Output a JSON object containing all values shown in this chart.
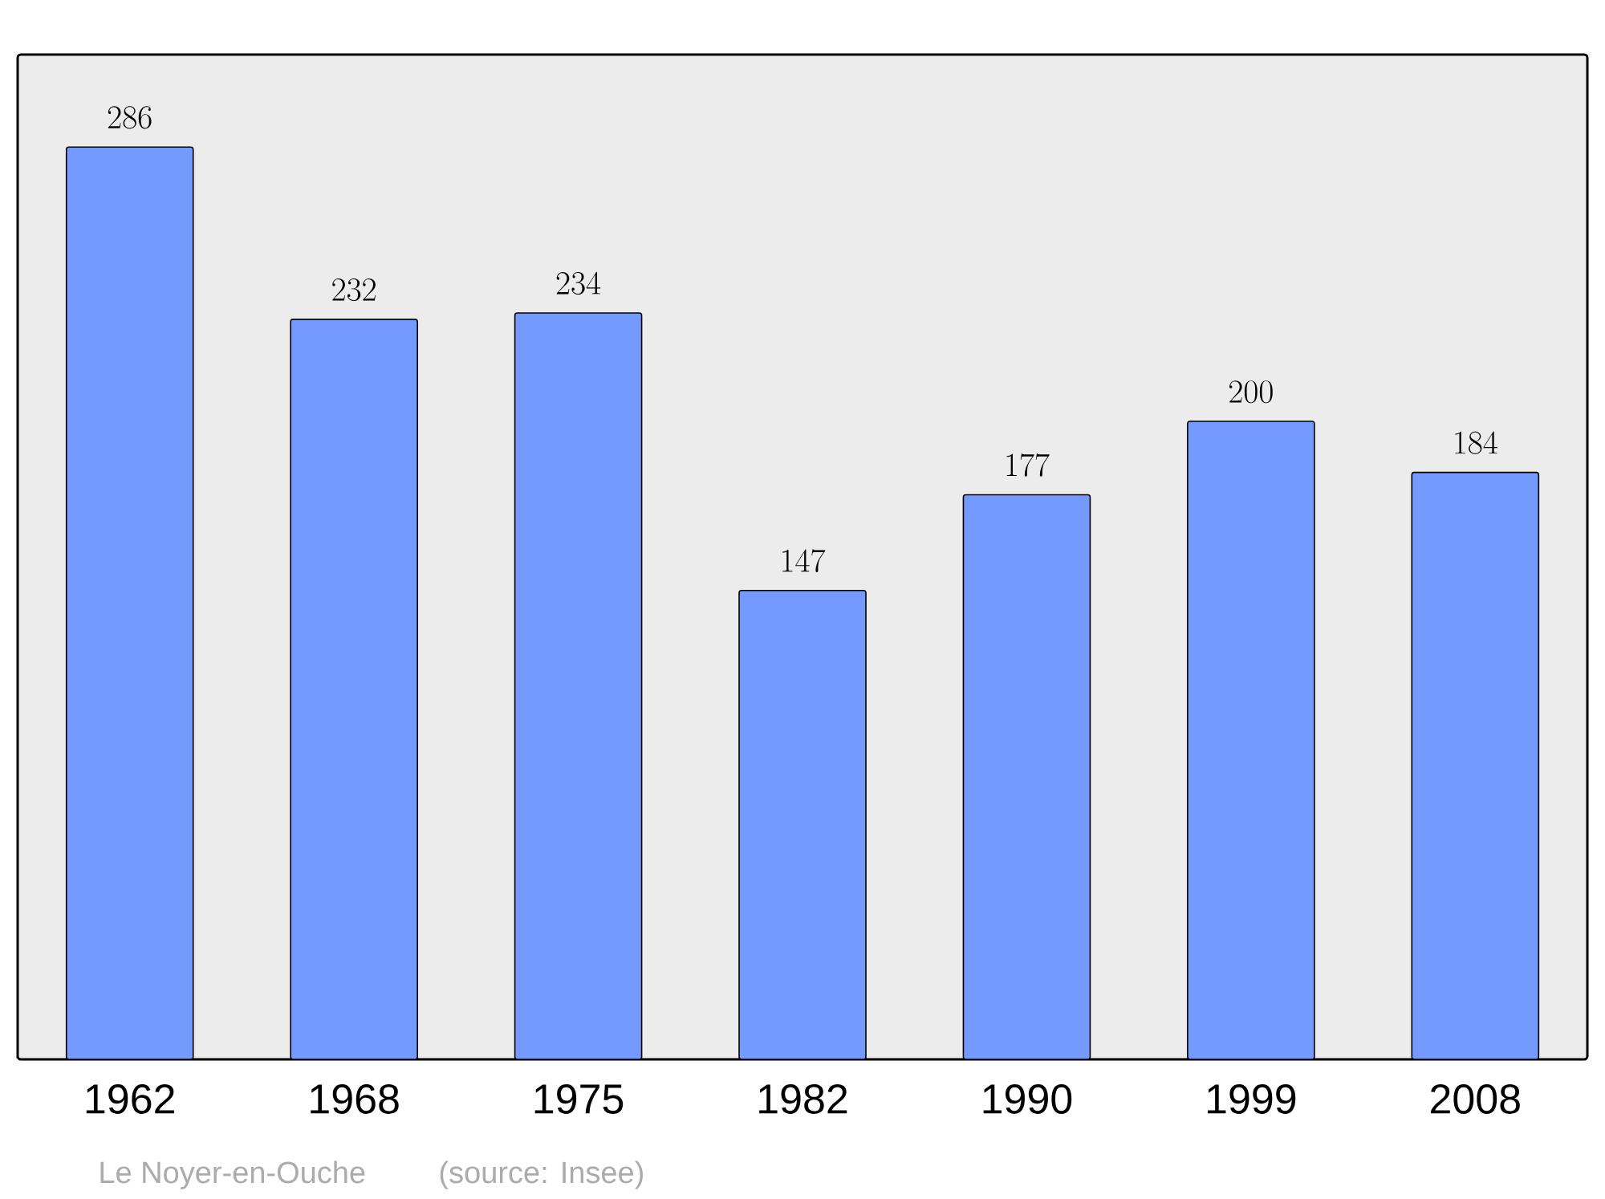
{
  "chart_data": {
    "type": "bar",
    "categories": [
      "1962",
      "1968",
      "1975",
      "1982",
      "1990",
      "1999",
      "2008"
    ],
    "values": [
      286,
      232,
      234,
      147,
      177,
      200,
      184
    ],
    "color": "#7499ff",
    "ylim": [
      0,
      315
    ],
    "data_labels": true,
    "annotations": [
      "Le Noyer-en-Ouche",
      "(source: Insee)"
    ]
  }
}
